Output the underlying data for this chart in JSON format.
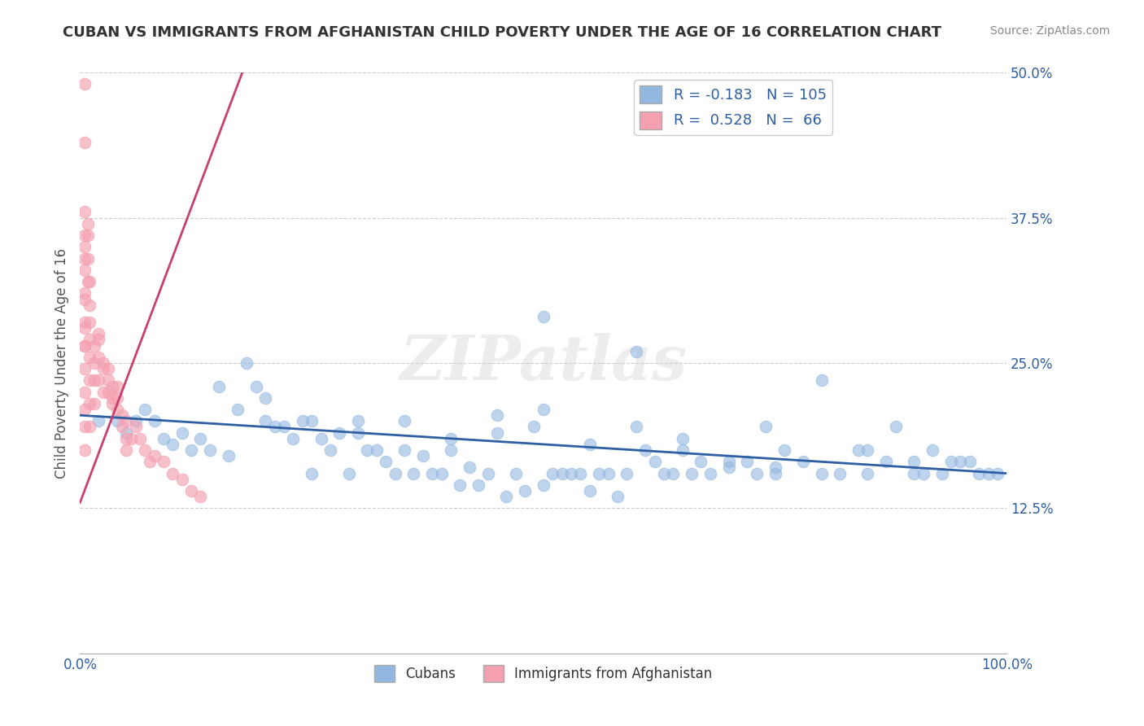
{
  "title": "CUBAN VS IMMIGRANTS FROM AFGHANISTAN CHILD POVERTY UNDER THE AGE OF 16 CORRELATION CHART",
  "source": "Source: ZipAtlas.com",
  "ylabel": "Child Poverty Under the Age of 16",
  "xlim": [
    0,
    1
  ],
  "ylim": [
    0,
    0.5
  ],
  "yticks": [
    0,
    0.125,
    0.25,
    0.375,
    0.5
  ],
  "ytick_labels": [
    "",
    "12.5%",
    "25.0%",
    "37.5%",
    "50.0%"
  ],
  "xtick_labels": [
    "0.0%",
    "100.0%"
  ],
  "blue_color": "#93B8E0",
  "pink_color": "#F4A0B0",
  "blue_line_color": "#2E5FA3",
  "pink_line_color": "#C84070",
  "R_blue": -0.183,
  "N_blue": 105,
  "R_pink": 0.528,
  "N_pink": 66,
  "legend_label_blue": "Cubans",
  "legend_label_pink": "Immigrants from Afghanistan",
  "watermark": "ZIPatlas",
  "background_color": "#FFFFFF",
  "blue_scatter_x": [
    0.02,
    0.04,
    0.05,
    0.06,
    0.07,
    0.08,
    0.09,
    0.1,
    0.11,
    0.12,
    0.13,
    0.14,
    0.15,
    0.16,
    0.17,
    0.18,
    0.19,
    0.2,
    0.21,
    0.22,
    0.23,
    0.24,
    0.25,
    0.26,
    0.27,
    0.28,
    0.29,
    0.3,
    0.31,
    0.32,
    0.33,
    0.34,
    0.35,
    0.36,
    0.37,
    0.38,
    0.39,
    0.4,
    0.41,
    0.42,
    0.43,
    0.44,
    0.45,
    0.46,
    0.47,
    0.48,
    0.49,
    0.5,
    0.51,
    0.52,
    0.53,
    0.54,
    0.55,
    0.56,
    0.57,
    0.58,
    0.59,
    0.6,
    0.61,
    0.62,
    0.63,
    0.64,
    0.65,
    0.66,
    0.67,
    0.68,
    0.7,
    0.72,
    0.73,
    0.74,
    0.75,
    0.76,
    0.78,
    0.8,
    0.82,
    0.84,
    0.85,
    0.87,
    0.88,
    0.9,
    0.91,
    0.92,
    0.93,
    0.94,
    0.95,
    0.96,
    0.97,
    0.98,
    0.99,
    0.5,
    0.55,
    0.6,
    0.3,
    0.35,
    0.4,
    0.45,
    0.5,
    0.65,
    0.7,
    0.75,
    0.8,
    0.85,
    0.9,
    0.2,
    0.25
  ],
  "blue_scatter_y": [
    0.2,
    0.2,
    0.19,
    0.2,
    0.21,
    0.2,
    0.185,
    0.18,
    0.19,
    0.175,
    0.185,
    0.175,
    0.23,
    0.17,
    0.21,
    0.25,
    0.23,
    0.2,
    0.195,
    0.195,
    0.185,
    0.2,
    0.2,
    0.185,
    0.175,
    0.19,
    0.155,
    0.19,
    0.175,
    0.175,
    0.165,
    0.155,
    0.2,
    0.155,
    0.17,
    0.155,
    0.155,
    0.185,
    0.145,
    0.16,
    0.145,
    0.155,
    0.19,
    0.135,
    0.155,
    0.14,
    0.195,
    0.145,
    0.155,
    0.155,
    0.155,
    0.155,
    0.18,
    0.155,
    0.155,
    0.135,
    0.155,
    0.195,
    0.175,
    0.165,
    0.155,
    0.155,
    0.185,
    0.155,
    0.165,
    0.155,
    0.165,
    0.165,
    0.155,
    0.195,
    0.155,
    0.175,
    0.165,
    0.235,
    0.155,
    0.175,
    0.175,
    0.165,
    0.195,
    0.165,
    0.155,
    0.175,
    0.155,
    0.165,
    0.165,
    0.165,
    0.155,
    0.155,
    0.155,
    0.29,
    0.14,
    0.26,
    0.2,
    0.175,
    0.175,
    0.205,
    0.21,
    0.175,
    0.16,
    0.16,
    0.155,
    0.155,
    0.155,
    0.22,
    0.155
  ],
  "pink_scatter_x": [
    0.005,
    0.005,
    0.005,
    0.005,
    0.005,
    0.005,
    0.005,
    0.005,
    0.005,
    0.005,
    0.005,
    0.005,
    0.005,
    0.008,
    0.008,
    0.008,
    0.01,
    0.01,
    0.01,
    0.01,
    0.01,
    0.01,
    0.015,
    0.015,
    0.015,
    0.02,
    0.02,
    0.02,
    0.025,
    0.025,
    0.03,
    0.03,
    0.035,
    0.035,
    0.04,
    0.04,
    0.045,
    0.05,
    0.05,
    0.055,
    0.06,
    0.065,
    0.07,
    0.075,
    0.08,
    0.09,
    0.1,
    0.11,
    0.12,
    0.13,
    0.005,
    0.005,
    0.005,
    0.005,
    0.005,
    0.008,
    0.01,
    0.01,
    0.015,
    0.02,
    0.025,
    0.03,
    0.035,
    0.04,
    0.045,
    0.05
  ],
  "pink_scatter_y": [
    0.49,
    0.44,
    0.38,
    0.36,
    0.34,
    0.31,
    0.28,
    0.265,
    0.245,
    0.225,
    0.21,
    0.195,
    0.175,
    0.37,
    0.36,
    0.32,
    0.3,
    0.27,
    0.255,
    0.235,
    0.215,
    0.195,
    0.25,
    0.235,
    0.215,
    0.275,
    0.255,
    0.235,
    0.245,
    0.225,
    0.245,
    0.225,
    0.23,
    0.215,
    0.23,
    0.21,
    0.205,
    0.2,
    0.175,
    0.185,
    0.195,
    0.185,
    0.175,
    0.165,
    0.17,
    0.165,
    0.155,
    0.15,
    0.14,
    0.135,
    0.35,
    0.33,
    0.305,
    0.285,
    0.265,
    0.34,
    0.32,
    0.285,
    0.265,
    0.27,
    0.25,
    0.235,
    0.22,
    0.22,
    0.195,
    0.185
  ],
  "blue_trendline_x0": 0.0,
  "blue_trendline_x1": 1.0,
  "blue_trendline_y0": 0.205,
  "blue_trendline_y1": 0.155,
  "pink_trendline_x0": 0.0,
  "pink_trendline_x1": 0.175,
  "pink_trendline_y0": 0.13,
  "pink_trendline_y1": 0.5
}
